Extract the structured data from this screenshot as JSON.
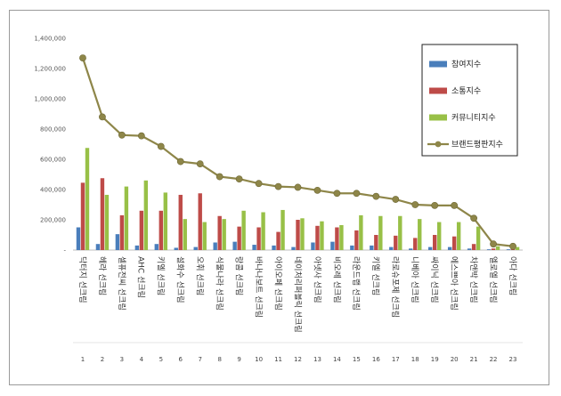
{
  "chart_data": {
    "type": "bar",
    "title": "",
    "xlabel": "",
    "ylabel": "",
    "ylim": [
      0,
      1400000
    ],
    "y_ticks": [
      "-",
      "200,000",
      "400,000",
      "600,000",
      "800,000",
      "1,000,000",
      "1,200,000",
      "1,400,000"
    ],
    "categories": [
      "닥터지 선크림",
      "헤라 선크림",
      "셀퓨전씨 선크림",
      "AHC 선크림",
      "키엘 선크림",
      "설화수 선크림",
      "오휘 선크림",
      "식물나라 선크림",
      "랑콤 선크림",
      "바나나보트 선크림",
      "아이오페 선크림",
      "네이처리퍼블릭 선크림",
      "아넷사 선크림",
      "비오레 선크림",
      "라운드랩 선크림",
      "키엘 선크림",
      "라로슈포제 선크림",
      "니베아 선크림",
      "싸이닉 선크림",
      "에스쁘아 선크림",
      "차앤박 선크림",
      "엘로엘 선크림",
      "아다 선크림"
    ],
    "rank_numbers": [
      "1",
      "2",
      "3",
      "4",
      "5",
      "6",
      "7",
      "8",
      "9",
      "10",
      "11",
      "12",
      "13",
      "14",
      "15",
      "16",
      "17",
      "18",
      "19",
      "20",
      "21",
      "22",
      "23"
    ],
    "series": [
      {
        "name": "참여지수",
        "kind": "bar",
        "color": "#4a7ebb",
        "values": [
          150000,
          40000,
          105000,
          30000,
          40000,
          15000,
          20000,
          50000,
          55000,
          35000,
          30000,
          20000,
          50000,
          55000,
          30000,
          30000,
          20000,
          10000,
          20000,
          20000,
          10000,
          5000,
          5000
        ]
      },
      {
        "name": "소통지수",
        "kind": "bar",
        "color": "#be4b48",
        "values": [
          445000,
          475000,
          230000,
          260000,
          260000,
          365000,
          375000,
          225000,
          155000,
          150000,
          120000,
          200000,
          160000,
          150000,
          130000,
          100000,
          95000,
          80000,
          100000,
          90000,
          40000,
          10000,
          10000
        ]
      },
      {
        "name": "커뮤니티지수",
        "kind": "bar",
        "color": "#98c047",
        "values": [
          675000,
          365000,
          420000,
          460000,
          380000,
          205000,
          185000,
          205000,
          260000,
          250000,
          265000,
          210000,
          190000,
          165000,
          230000,
          225000,
          225000,
          205000,
          185000,
          185000,
          155000,
          25000,
          20000
        ]
      },
      {
        "name": "브랜드평판지수",
        "kind": "line",
        "color": "#8e8649",
        "values": [
          1270000,
          880000,
          760000,
          755000,
          685000,
          585000,
          570000,
          485000,
          470000,
          440000,
          420000,
          415000,
          395000,
          375000,
          375000,
          355000,
          335000,
          300000,
          295000,
          295000,
          210000,
          40000,
          25000
        ]
      }
    ],
    "legend_position": "top-right"
  }
}
